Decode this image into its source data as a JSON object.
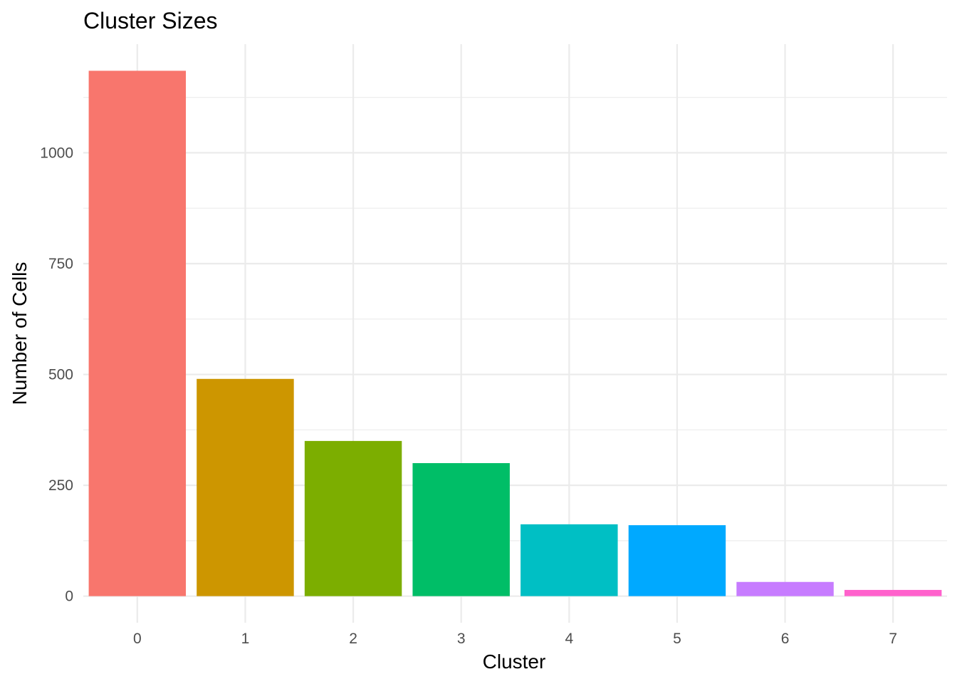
{
  "chart_data": {
    "type": "bar",
    "title": "Cluster Sizes",
    "xlabel": "Cluster",
    "ylabel": "Number of Cells",
    "categories": [
      "0",
      "1",
      "2",
      "3",
      "4",
      "5",
      "6",
      "7"
    ],
    "values": [
      1185,
      490,
      350,
      300,
      162,
      160,
      32,
      14
    ],
    "colors": [
      "#F8766D",
      "#CD9600",
      "#7CAE00",
      "#00BE67",
      "#00BFC4",
      "#00A9FF",
      "#C77CFF",
      "#FF61CC"
    ],
    "y_ticks": [
      0,
      250,
      500,
      750,
      1000
    ],
    "ylim": [
      -60,
      1245
    ],
    "grid": true,
    "legend": "none"
  }
}
